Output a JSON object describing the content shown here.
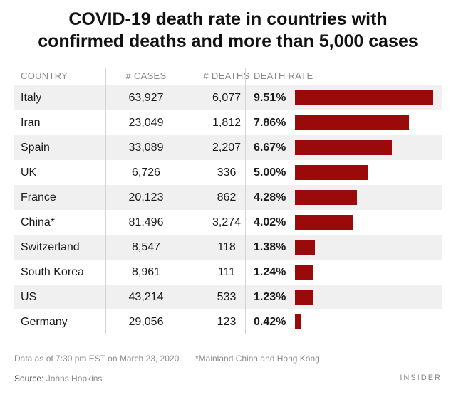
{
  "title_line1": "COVID-19 death rate in countries with",
  "title_line2": "confirmed deaths and more than 5,000 cases",
  "headers": {
    "country": "COUNTRY",
    "cases": "# CASES",
    "deaths": "# DEATHS",
    "rate": "DEATH RATE"
  },
  "chart_data": {
    "type": "bar",
    "title": "COVID-19 death rate in countries with confirmed deaths and more than 5,000 cases",
    "categories": [
      "Italy",
      "Iran",
      "Spain",
      "UK",
      "France",
      "China*",
      "Switzerland",
      "South Korea",
      "US",
      "Germany"
    ],
    "cases": [
      "63,927",
      "23,049",
      "33,089",
      "6,726",
      "20,123",
      "81,496",
      "8,547",
      "8,961",
      "43,214",
      "29,056"
    ],
    "deaths": [
      "6,077",
      "1,812",
      "2,207",
      "336",
      "862",
      "3,274",
      "118",
      "111",
      "533",
      "123"
    ],
    "rate_labels": [
      "9.51%",
      "7.86%",
      "6.67%",
      "5.00%",
      "4.28%",
      "4.02%",
      "1.38%",
      "1.24%",
      "1.23%",
      "0.42%"
    ],
    "values": [
      9.51,
      7.86,
      6.67,
      5.0,
      4.28,
      4.02,
      1.38,
      1.24,
      1.23,
      0.42
    ],
    "xlim": [
      0,
      9.51
    ],
    "bar_color": "#9b0a0a",
    "xlabel": "",
    "ylabel": ""
  },
  "notes": {
    "data_as_of": "Data as of 7:30 pm EST on March 23, 2020.",
    "china_note": "*Mainland China and Hong Kong"
  },
  "source": {
    "label": "Source:",
    "value": "Johns Hopkins"
  },
  "brand": "INSIDER"
}
